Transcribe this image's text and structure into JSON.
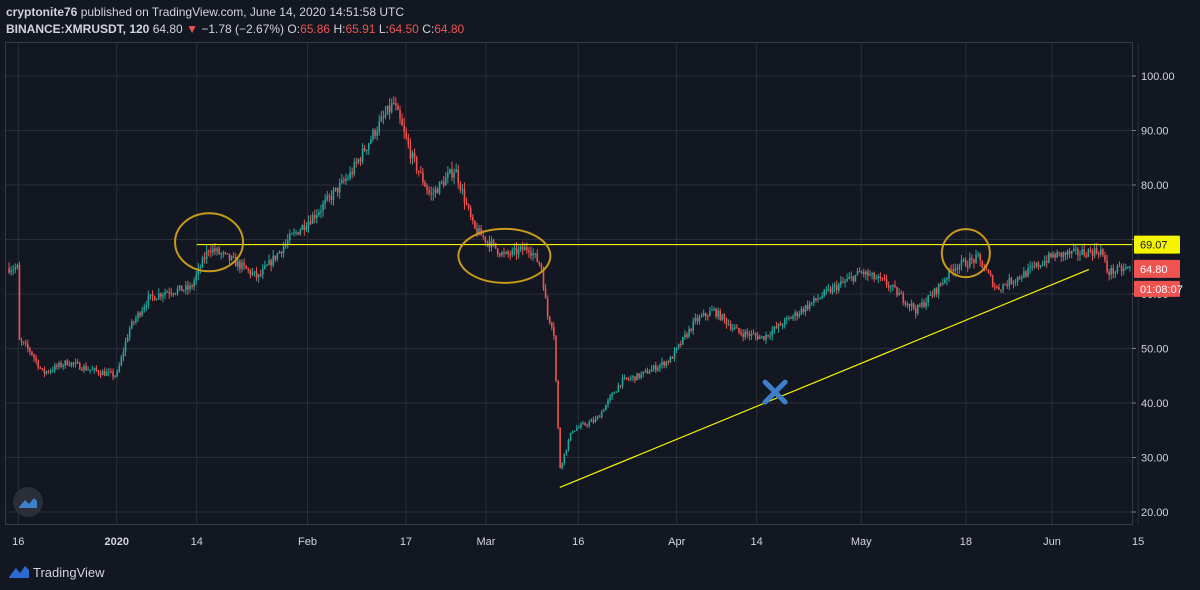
{
  "header": {
    "line1_user": "cryptonite76",
    "line1_rest": " published on TradingView.com, June 14, 2020 14:51:58 UTC",
    "symbol": "BINANCE:XMRUSDT, 120",
    "last": "64.80",
    "change": "−1.78 (−2.67%)",
    "o_label": "O:",
    "o_value": "65.86",
    "h_label": "H:",
    "h_value": "65.91",
    "l_label": "L:",
    "l_value": "64.50",
    "c_label": "C:",
    "c_value": "64.80"
  },
  "footer": {
    "brand": "TradingView"
  },
  "colors": {
    "up": "#26a69a",
    "down": "#ef5350",
    "level": "#f5f500",
    "ellipse": "#c79a18",
    "cross": "#3d7fc8"
  },
  "chart_data": {
    "type": "candlestick",
    "symbol": "BINANCE:XMRUSDT",
    "interval": "120",
    "ylim": [
      18,
      104
    ],
    "y_ticks": [
      20,
      30,
      40,
      50,
      60,
      70,
      80,
      90,
      100
    ],
    "y_tick_labels": [
      "20.00",
      "30.00",
      "40.00",
      "50.00",
      "60.00",
      "70.00",
      "80.00",
      "90.00",
      "100.00"
    ],
    "x_tick_labels": [
      "16",
      "2020",
      "14",
      "Feb",
      "17",
      "Mar",
      "16",
      "Apr",
      "14",
      "May",
      "18",
      "Jun",
      "15"
    ],
    "grid": true,
    "price_path": [
      {
        "date": "2019-12-16",
        "price": 51.5
      },
      {
        "date": "2019-12-18",
        "price": 49.5
      },
      {
        "date": "2019-12-20",
        "price": 45.5
      },
      {
        "date": "2019-12-24",
        "price": 47.5
      },
      {
        "date": "2019-12-28",
        "price": 46.0
      },
      {
        "date": "2020-01-01",
        "price": 45.0
      },
      {
        "date": "2020-01-03",
        "price": 53.5
      },
      {
        "date": "2020-01-06",
        "price": 59.0
      },
      {
        "date": "2020-01-09",
        "price": 60.5
      },
      {
        "date": "2020-01-13",
        "price": 61.0
      },
      {
        "date": "2020-01-16",
        "price": 68.5
      },
      {
        "date": "2020-01-20",
        "price": 66.0
      },
      {
        "date": "2020-01-24",
        "price": 63.0
      },
      {
        "date": "2020-01-29",
        "price": 70.0
      },
      {
        "date": "2020-02-03",
        "price": 75.5
      },
      {
        "date": "2020-02-08",
        "price": 82.0
      },
      {
        "date": "2020-02-12",
        "price": 90.0
      },
      {
        "date": "2020-02-15",
        "price": 95.0
      },
      {
        "date": "2020-02-18",
        "price": 85.0
      },
      {
        "date": "2020-02-21",
        "price": 78.0
      },
      {
        "date": "2020-02-25",
        "price": 83.0
      },
      {
        "date": "2020-02-28",
        "price": 72.0
      },
      {
        "date": "2020-03-04",
        "price": 67.0
      },
      {
        "date": "2020-03-08",
        "price": 68.5
      },
      {
        "date": "2020-03-10",
        "price": 65.0
      },
      {
        "date": "2020-03-11",
        "price": 56.0
      },
      {
        "date": "2020-03-12",
        "price": 54.0
      },
      {
        "date": "2020-03-13",
        "price": 28.0
      },
      {
        "date": "2020-03-15",
        "price": 35.0
      },
      {
        "date": "2020-03-19",
        "price": 37.0
      },
      {
        "date": "2020-03-23",
        "price": 44.0
      },
      {
        "date": "2020-03-26",
        "price": 45.0
      },
      {
        "date": "2020-03-31",
        "price": 48.0
      },
      {
        "date": "2020-04-04",
        "price": 55.0
      },
      {
        "date": "2020-04-07",
        "price": 57.0
      },
      {
        "date": "2020-04-11",
        "price": 53.0
      },
      {
        "date": "2020-04-15",
        "price": 52.0
      },
      {
        "date": "2020-04-20",
        "price": 56.0
      },
      {
        "date": "2020-04-25",
        "price": 60.0
      },
      {
        "date": "2020-05-01",
        "price": 64.0
      },
      {
        "date": "2020-05-05",
        "price": 62.0
      },
      {
        "date": "2020-05-10",
        "price": 57.0
      },
      {
        "date": "2020-05-13",
        "price": 60.5
      },
      {
        "date": "2020-05-16",
        "price": 65.0
      },
      {
        "date": "2020-05-20",
        "price": 66.5
      },
      {
        "date": "2020-05-23",
        "price": 61.0
      },
      {
        "date": "2020-05-28",
        "price": 64.0
      },
      {
        "date": "2020-06-01",
        "price": 67.0
      },
      {
        "date": "2020-06-05",
        "price": 67.5
      },
      {
        "date": "2020-06-09",
        "price": 68.0
      },
      {
        "date": "2020-06-10",
        "price": 64.0
      },
      {
        "date": "2020-06-14",
        "price": 64.8
      }
    ],
    "horizontal_level": {
      "price": 69.07,
      "label": "69.07",
      "from_date": "2020-01-14"
    },
    "trendline": {
      "from": {
        "date": "2020-03-13",
        "price": 24.5
      },
      "to": {
        "date": "2020-06-07",
        "price": 64.5
      }
    },
    "ellipses": [
      {
        "center_date": "2020-01-16",
        "center_price": 69.5
      },
      {
        "center_date": "2020-03-04",
        "center_price": 67.0
      },
      {
        "center_date": "2020-05-18",
        "center_price": 67.5
      }
    ],
    "cross_marker": {
      "date": "2020-04-17",
      "price": 42.0
    },
    "last_price_label": "64.80",
    "countdown_label": "01:08:07"
  }
}
